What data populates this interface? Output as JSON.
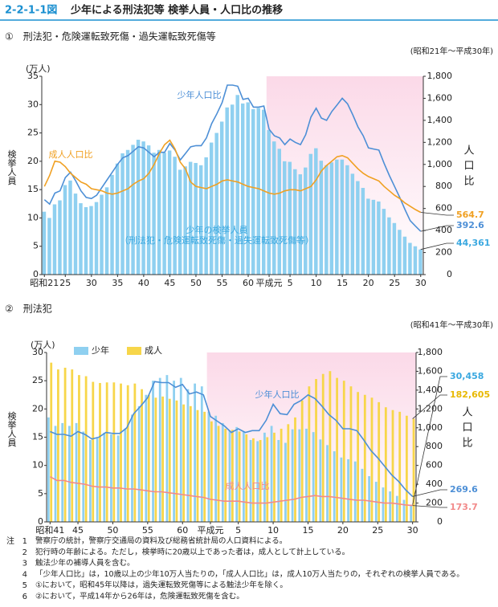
{
  "header": {
    "figure_number": "2-2-1-1図",
    "title": "少年による刑法犯等 検挙人員・人口比の推移"
  },
  "chart_data": [
    {
      "type": "bar",
      "subtitle": "①　刑法犯・危険運転致死傷・過失運転致死傷等",
      "period": "(昭和21年～平成30年)",
      "y_unit": "(万人)",
      "ylabel": "検挙人員",
      "y2label": "人口比",
      "categories": [
        "昭和21",
        null,
        null,
        null,
        "25",
        null,
        null,
        null,
        null,
        "30",
        null,
        null,
        null,
        null,
        "35",
        null,
        null,
        null,
        null,
        "40",
        null,
        null,
        null,
        null,
        "45",
        null,
        null,
        null,
        null,
        "50",
        null,
        null,
        null,
        null,
        "55",
        null,
        null,
        null,
        null,
        "60",
        null,
        null,
        null,
        "平成元",
        null,
        null,
        null,
        "5",
        null,
        null,
        null,
        null,
        "10",
        null,
        null,
        null,
        null,
        "15",
        null,
        null,
        null,
        null,
        "20",
        null,
        null,
        null,
        null,
        "25",
        null,
        null,
        null,
        null,
        "30"
      ],
      "ylim": [
        0,
        35
      ],
      "yticks": [
        0,
        5,
        10,
        15,
        20,
        25,
        30,
        35
      ],
      "y2lim": [
        0,
        1800
      ],
      "y2ticks": [
        0,
        200,
        400,
        600,
        800,
        {
          "value": 1000,
          "label": "1,000"
        },
        {
          "value": 1200,
          "label": "1,200"
        },
        {
          "value": 1400,
          "label": "1,400"
        },
        {
          "value": 1600,
          "label": "1,600"
        },
        {
          "value": 1800,
          "label": "1,800"
        }
      ],
      "legend": false,
      "series": [
        {
          "name": "少年の検挙人員",
          "sublabel": "（刑法犯・危険運転致死傷・過失運転致死傷等）",
          "type": "bar",
          "color": "#8fd0f0",
          "values": [
            11.1,
            10.0,
            12.4,
            13.1,
            15.8,
            16.6,
            14.3,
            12.6,
            11.9,
            12.1,
            12.8,
            14.1,
            15.4,
            17.6,
            19.6,
            21.4,
            22.0,
            22.9,
            23.8,
            23.5,
            22.8,
            21.5,
            22.0,
            21.5,
            21.9,
            20.8,
            18.5,
            19.1,
            19.9,
            19.7,
            19.3,
            20.7,
            23.3,
            25.0,
            27.0,
            29.5,
            30.0,
            31.7,
            30.2,
            30.4,
            29.2,
            29.4,
            29.1,
            25.5,
            23.5,
            22.2,
            20.0,
            19.9,
            18.6,
            17.7,
            18.9,
            21.3,
            22.3,
            20.1,
            19.3,
            19.8,
            20.3,
            20.3,
            19.3,
            17.8,
            16.5,
            15.3,
            13.4,
            13.2,
            12.9,
            11.6,
            10.1,
            9.1,
            7.9,
            6.7,
            5.6,
            5.0,
            4.4361
          ],
          "value_labels": [
            null,
            null,
            null,
            null,
            null,
            null,
            null,
            null,
            null,
            null,
            null,
            null,
            null,
            null,
            null,
            null,
            null,
            null,
            null,
            null,
            null,
            null,
            null,
            null,
            null,
            null,
            null,
            null,
            null,
            null,
            null,
            null,
            null,
            null,
            null,
            null,
            null,
            null,
            null,
            null,
            null,
            null,
            null,
            null,
            null,
            null,
            null,
            null,
            null,
            null,
            null,
            null,
            null,
            null,
            null,
            null,
            null,
            null,
            null,
            null,
            null,
            null,
            null,
            null,
            null,
            null,
            null,
            null,
            null,
            null,
            null,
            null,
            "44,361"
          ]
        },
        {
          "name": "少年人口比",
          "type": "line",
          "axis": "y2",
          "color": "#4d8fd6",
          "values": [
            680,
            640,
            740,
            760,
            880,
            930,
            850,
            760,
            700,
            690,
            720,
            790,
            860,
            930,
            1000,
            1060,
            1080,
            1120,
            1160,
            1150,
            1110,
            1070,
            1110,
            1110,
            1190,
            1130,
            1040,
            1100,
            1160,
            1170,
            1170,
            1240,
            1370,
            1460,
            1560,
            1720,
            1720,
            1710,
            1590,
            1600,
            1520,
            1520,
            1530,
            1320,
            1260,
            1240,
            1180,
            1230,
            1200,
            1180,
            1270,
            1430,
            1510,
            1420,
            1400,
            1480,
            1540,
            1600,
            1550,
            1450,
            1340,
            1260,
            1150,
            1140,
            1130,
            1010,
            900,
            800,
            700,
            590,
            490,
            440,
            392.6
          ]
        },
        {
          "name": "成人人口比",
          "type": "line",
          "axis": "y2",
          "color": "#f0a022",
          "values": [
            800,
            900,
            1030,
            1020,
            980,
            920,
            880,
            840,
            820,
            780,
            770,
            760,
            740,
            730,
            740,
            760,
            780,
            820,
            850,
            870,
            920,
            1000,
            1100,
            1180,
            1220,
            1140,
            1020,
            960,
            840,
            800,
            790,
            780,
            800,
            820,
            850,
            860,
            850,
            840,
            820,
            800,
            790,
            780,
            760,
            740,
            730,
            740,
            760,
            770,
            770,
            760,
            780,
            800,
            860,
            940,
            990,
            1030,
            1070,
            1080,
            1060,
            1010,
            960,
            920,
            890,
            870,
            850,
            800,
            760,
            720,
            690,
            650,
            620,
            590,
            564.7
          ]
        }
      ]
    },
    {
      "type": "bar",
      "subtitle": "②　刑法犯",
      "period": "(昭和41年～平成30年)",
      "y_unit": "(万人)",
      "ylabel": "検挙人員",
      "y2label": "人口比",
      "categories": [
        "昭和41",
        null,
        null,
        null,
        "45",
        null,
        null,
        null,
        null,
        "50",
        null,
        null,
        null,
        null,
        "55",
        null,
        null,
        null,
        null,
        "60",
        null,
        null,
        null,
        "平成元",
        null,
        null,
        null,
        "5",
        null,
        null,
        null,
        null,
        "10",
        null,
        null,
        null,
        null,
        "15",
        null,
        null,
        null,
        null,
        "20",
        null,
        null,
        null,
        null,
        "25",
        null,
        null,
        null,
        null,
        "30"
      ],
      "ylim": [
        0,
        30
      ],
      "yticks": [
        0,
        5,
        10,
        15,
        20,
        25,
        30
      ],
      "y2lim": [
        0,
        1800
      ],
      "y2ticks": [
        0,
        200,
        400,
        600,
        800,
        {
          "value": 1000,
          "label": "1,000"
        },
        {
          "value": 1200,
          "label": "1,200"
        },
        {
          "value": 1400,
          "label": "1,400"
        },
        {
          "value": 1600,
          "label": "1,600"
        },
        {
          "value": 1800,
          "label": "1,800"
        }
      ],
      "legend": true,
      "series": [
        {
          "name": "少年",
          "type": "bar",
          "color": "#8fd0f0",
          "values": [
            18.5,
            17.0,
            17.5,
            17.0,
            17.5,
            16.0,
            14.5,
            14.8,
            15.8,
            15.5,
            15.3,
            16.5,
            19.0,
            20.5,
            22.5,
            25.0,
            25.5,
            26.0,
            25.0,
            25.5,
            23.5,
            24.5,
            24.0,
            19.5,
            18.8,
            17.5,
            16.2,
            16.8,
            16.0,
            14.5,
            14.3,
            15.8,
            17.0,
            14.5,
            14.0,
            16.4,
            16.4,
            16.5,
            15.9,
            14.6,
            13.6,
            12.5,
            11.4,
            11.1,
            10.7,
            9.4,
            8.1,
            7.1,
            6.1,
            5.4,
            4.6,
            3.9,
            3.0458
          ],
          "value_labels": [
            null,
            null,
            null,
            null,
            null,
            null,
            null,
            null,
            null,
            null,
            null,
            null,
            null,
            null,
            null,
            null,
            null,
            null,
            null,
            null,
            null,
            null,
            null,
            null,
            null,
            null,
            null,
            null,
            null,
            null,
            null,
            null,
            null,
            null,
            null,
            null,
            null,
            null,
            null,
            null,
            null,
            null,
            null,
            null,
            null,
            null,
            null,
            null,
            null,
            null,
            null,
            null,
            "30,458"
          ]
        },
        {
          "name": "成人",
          "type": "bar",
          "color": "#f7d64a",
          "values": [
            28.2,
            27.0,
            27.3,
            27.0,
            26.0,
            25.8,
            24.8,
            24.6,
            24.7,
            24.7,
            24.5,
            24.2,
            24.5,
            23.5,
            22.5,
            22.0,
            22.2,
            21.8,
            21.5,
            20.8,
            20.5,
            19.8,
            19.5,
            17.8,
            17.0,
            16.5,
            16.3,
            16.0,
            15.5,
            14.8,
            14.5,
            15.0,
            15.8,
            16.5,
            17.3,
            18.5,
            21.5,
            24.0,
            25.3,
            26.2,
            26.7,
            25.5,
            25.0,
            24.0,
            23.0,
            22.5,
            22.0,
            21.2,
            20.3,
            19.8,
            19.5,
            18.8,
            18.2605
          ],
          "value_labels": [
            null,
            null,
            null,
            null,
            null,
            null,
            null,
            null,
            null,
            null,
            null,
            null,
            null,
            null,
            null,
            null,
            null,
            null,
            null,
            null,
            null,
            null,
            null,
            null,
            null,
            null,
            null,
            null,
            null,
            null,
            null,
            null,
            null,
            null,
            null,
            null,
            null,
            null,
            null,
            null,
            null,
            null,
            null,
            null,
            null,
            null,
            null,
            null,
            null,
            null,
            null,
            null,
            "182,605"
          ]
        },
        {
          "name": "少年人口比",
          "type": "line",
          "axis": "y2",
          "color": "#4d8fd6",
          "values": [
            960,
            930,
            930,
            910,
            960,
            930,
            880,
            900,
            950,
            940,
            940,
            1000,
            1150,
            1230,
            1320,
            1490,
            1480,
            1480,
            1430,
            1460,
            1360,
            1380,
            1350,
            1120,
            1070,
            1020,
            950,
            990,
            950,
            970,
            970,
            1080,
            1250,
            1150,
            1140,
            1250,
            1290,
            1350,
            1310,
            1230,
            1140,
            1080,
            990,
            990,
            970,
            870,
            760,
            680,
            590,
            500,
            430,
            340,
            269.6
          ]
        },
        {
          "name": "成人人口比",
          "type": "line",
          "axis": "y2",
          "color": "#f28a8a",
          "values": [
            480,
            440,
            440,
            420,
            410,
            400,
            380,
            370,
            370,
            360,
            360,
            350,
            350,
            340,
            330,
            320,
            320,
            310,
            300,
            290,
            280,
            270,
            260,
            240,
            230,
            220,
            220,
            220,
            210,
            200,
            200,
            200,
            210,
            220,
            230,
            240,
            260,
            270,
            280,
            270,
            270,
            260,
            250,
            240,
            230,
            230,
            220,
            210,
            200,
            200,
            190,
            180,
            173.7
          ]
        }
      ]
    }
  ],
  "notes": {
    "label": "注",
    "items": [
      {
        "no": "1",
        "text": "警察庁の統計，警察庁交通局の資料及び総務省統計局の人口資料による。"
      },
      {
        "no": "2",
        "text": "犯行時の年齢による。ただし，検挙時に20歳以上であった者は，成人として計上している。"
      },
      {
        "no": "3",
        "text": "触法少年の補導人員を含む。"
      },
      {
        "no": "4",
        "text": "「少年人口比」は，10歳以上の少年10万人当たりの，「成人人口比」は，成人10万人当たりの，それぞれの検挙人員である。"
      },
      {
        "no": "5",
        "text": "①において，昭和45年以降は，過失運転致死傷等による触法少年を除く。"
      },
      {
        "no": "6",
        "text": "②において，平成14年から26年は，危険運転致死傷を含む。"
      }
    ]
  }
}
